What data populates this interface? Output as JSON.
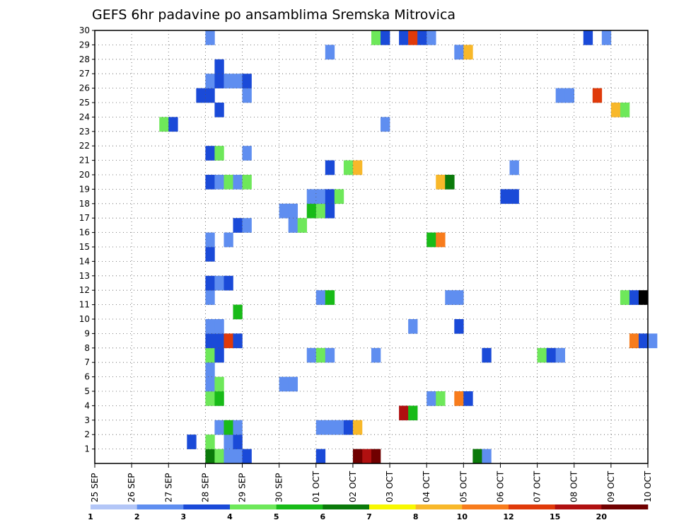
{
  "chart_data": {
    "type": "heatmap",
    "title": "GEFS 6hr padavine po ansamblima Sremska Mitrovica",
    "xlabel": "",
    "ylabel": "",
    "x_tick_labels": [
      "25 SEP",
      "26 SEP",
      "27 SEP",
      "28 SEP",
      "29 SEP",
      "30 SEP",
      "01 OCT",
      "02 OCT",
      "03 OCT",
      "04 OCT",
      "05 OCT",
      "06 OCT",
      "07 OCT",
      "08 OCT",
      "09 OCT",
      "10 OCT"
    ],
    "y_tick_labels": [
      "1",
      "2",
      "3",
      "4",
      "5",
      "6",
      "7",
      "8",
      "9",
      "10",
      "11",
      "12",
      "13",
      "14",
      "15",
      "16",
      "17",
      "18",
      "19",
      "20",
      "21",
      "22",
      "23",
      "24",
      "25",
      "26",
      "27",
      "28",
      "29",
      "30"
    ],
    "x_range_days": [
      0,
      15
    ],
    "y_range_members": [
      0,
      30
    ],
    "steps_per_day": 4,
    "grid": true,
    "colorbar": {
      "levels": [
        "1",
        "2",
        "3",
        "4",
        "5",
        "6",
        "7",
        "8",
        "10",
        "12",
        "15",
        "20"
      ],
      "colors": [
        "#b3c6f7",
        "#5f8ef0",
        "#1a4ad8",
        "#6ee85a",
        "#18bb18",
        "#0a7a0a",
        "#f8f800",
        "#f8b82a",
        "#f87c1c",
        "#e03a0a",
        "#b01010",
        "#700000"
      ]
    },
    "cells": [
      [
        0,
        12,
        5
      ],
      [
        0,
        13,
        3
      ],
      [
        0,
        14,
        1
      ],
      [
        0,
        15,
        1
      ],
      [
        0,
        16,
        2
      ],
      [
        0,
        24,
        2
      ],
      [
        0,
        29,
        10
      ],
      [
        0,
        28,
        11
      ],
      [
        0,
        30,
        11
      ],
      [
        0,
        41,
        5
      ],
      [
        0,
        42,
        1
      ],
      [
        1,
        10,
        2
      ],
      [
        1,
        12,
        3
      ],
      [
        1,
        14,
        1
      ],
      [
        1,
        15,
        2
      ],
      [
        2,
        13,
        1
      ],
      [
        2,
        14,
        4
      ],
      [
        2,
        15,
        1
      ],
      [
        2,
        24,
        1
      ],
      [
        2,
        25,
        1
      ],
      [
        2,
        26,
        1
      ],
      [
        2,
        27,
        2
      ],
      [
        2,
        28,
        7
      ],
      [
        3,
        33,
        10
      ],
      [
        3,
        34,
        4
      ],
      [
        4,
        12,
        3
      ],
      [
        4,
        13,
        4
      ],
      [
        4,
        36,
        1
      ],
      [
        4,
        37,
        3
      ],
      [
        4,
        39,
        8
      ],
      [
        4,
        40,
        2
      ],
      [
        5,
        12,
        1
      ],
      [
        5,
        13,
        3
      ],
      [
        5,
        20,
        1
      ],
      [
        5,
        21,
        1
      ],
      [
        6,
        12,
        1
      ],
      [
        7,
        12,
        3
      ],
      [
        7,
        13,
        2
      ],
      [
        7,
        23,
        1
      ],
      [
        7,
        24,
        3
      ],
      [
        7,
        25,
        1
      ],
      [
        7,
        30,
        1
      ],
      [
        7,
        42,
        2
      ],
      [
        7,
        48,
        3
      ],
      [
        7,
        49,
        2
      ],
      [
        7,
        50,
        1
      ],
      [
        8,
        12,
        2
      ],
      [
        8,
        13,
        2
      ],
      [
        8,
        14,
        9
      ],
      [
        8,
        15,
        2
      ],
      [
        8,
        58,
        8
      ],
      [
        8,
        59,
        2
      ],
      [
        8,
        60,
        1
      ],
      [
        9,
        12,
        1
      ],
      [
        9,
        13,
        1
      ],
      [
        9,
        34,
        1
      ],
      [
        9,
        39,
        2
      ],
      [
        10,
        15,
        4
      ],
      [
        11,
        12,
        1
      ],
      [
        11,
        24,
        1
      ],
      [
        11,
        25,
        4
      ],
      [
        11,
        38,
        1
      ],
      [
        11,
        39,
        1
      ],
      [
        11,
        57,
        3
      ],
      [
        11,
        58,
        2
      ],
      [
        11,
        59,
        12
      ],
      [
        12,
        12,
        2
      ],
      [
        12,
        13,
        1
      ],
      [
        12,
        14,
        2
      ],
      [
        14,
        12,
        2
      ],
      [
        15,
        12,
        1
      ],
      [
        15,
        14,
        1
      ],
      [
        15,
        36,
        4
      ],
      [
        15,
        37,
        8
      ],
      [
        16,
        15,
        2
      ],
      [
        16,
        16,
        1
      ],
      [
        16,
        21,
        1
      ],
      [
        16,
        22,
        3
      ],
      [
        17,
        20,
        1
      ],
      [
        17,
        21,
        1
      ],
      [
        17,
        23,
        4
      ],
      [
        17,
        24,
        3
      ],
      [
        17,
        25,
        2
      ],
      [
        18,
        23,
        1
      ],
      [
        18,
        24,
        1
      ],
      [
        18,
        25,
        2
      ],
      [
        18,
        26,
        3
      ],
      [
        18,
        44,
        2
      ],
      [
        18,
        45,
        2
      ],
      [
        19,
        12,
        2
      ],
      [
        19,
        13,
        1
      ],
      [
        19,
        14,
        3
      ],
      [
        19,
        15,
        1
      ],
      [
        19,
        16,
        3
      ],
      [
        19,
        37,
        7
      ],
      [
        19,
        38,
        5
      ],
      [
        20,
        25,
        2
      ],
      [
        20,
        27,
        3
      ],
      [
        20,
        28,
        7
      ],
      [
        20,
        45,
        1
      ],
      [
        21,
        12,
        2
      ],
      [
        21,
        13,
        3
      ],
      [
        21,
        16,
        1
      ],
      [
        23,
        7,
        3
      ],
      [
        23,
        8,
        2
      ],
      [
        23,
        31,
        1
      ],
      [
        24,
        13,
        2
      ],
      [
        24,
        56,
        7
      ],
      [
        24,
        57,
        3
      ],
      [
        25,
        11,
        2
      ],
      [
        25,
        12,
        2
      ],
      [
        25,
        16,
        1
      ],
      [
        25,
        50,
        1
      ],
      [
        25,
        51,
        1
      ],
      [
        25,
        54,
        9
      ],
      [
        26,
        12,
        1
      ],
      [
        26,
        13,
        2
      ],
      [
        26,
        14,
        1
      ],
      [
        26,
        15,
        1
      ],
      [
        26,
        16,
        2
      ],
      [
        27,
        13,
        2
      ],
      [
        28,
        25,
        1
      ],
      [
        28,
        39,
        1
      ],
      [
        28,
        40,
        7
      ],
      [
        29,
        12,
        1
      ],
      [
        29,
        30,
        3
      ],
      [
        29,
        31,
        2
      ],
      [
        29,
        33,
        2
      ],
      [
        29,
        34,
        9
      ],
      [
        29,
        35,
        2
      ],
      [
        29,
        36,
        1
      ],
      [
        29,
        53,
        2
      ],
      [
        29,
        55,
        1
      ]
    ]
  }
}
